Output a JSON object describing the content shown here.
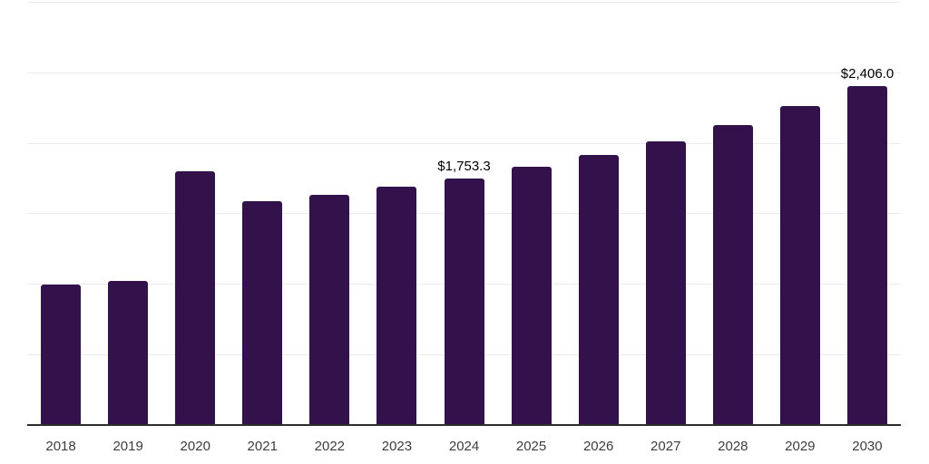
{
  "chart": {
    "title": "",
    "colors": {
      "background": "#ffffff",
      "bar": "#33124C",
      "gridline": "#ebebeb",
      "axis_line": "#2d2d2d",
      "tick_label": "#3d3d3d",
      "data_label": "#000000"
    }
  },
  "chart_data": {
    "type": "bar",
    "title": "",
    "xlabel": "",
    "ylabel": "",
    "categories": [
      "2018",
      "2019",
      "2020",
      "2021",
      "2022",
      "2023",
      "2024",
      "2025",
      "2026",
      "2027",
      "2028",
      "2029",
      "2030"
    ],
    "values": [
      1002,
      1030,
      1804,
      1592,
      1637,
      1695,
      1753.3,
      1836,
      1919,
      2016,
      2131,
      2266,
      2406.0
    ],
    "data_labels": {
      "2024": "$1,753.3",
      "2030": "$2,406.0"
    },
    "ylim": [
      0,
      3000
    ],
    "gridline_step": 500,
    "grid": "horizontal",
    "legend": "none",
    "y_axis_labels_visible": false
  }
}
